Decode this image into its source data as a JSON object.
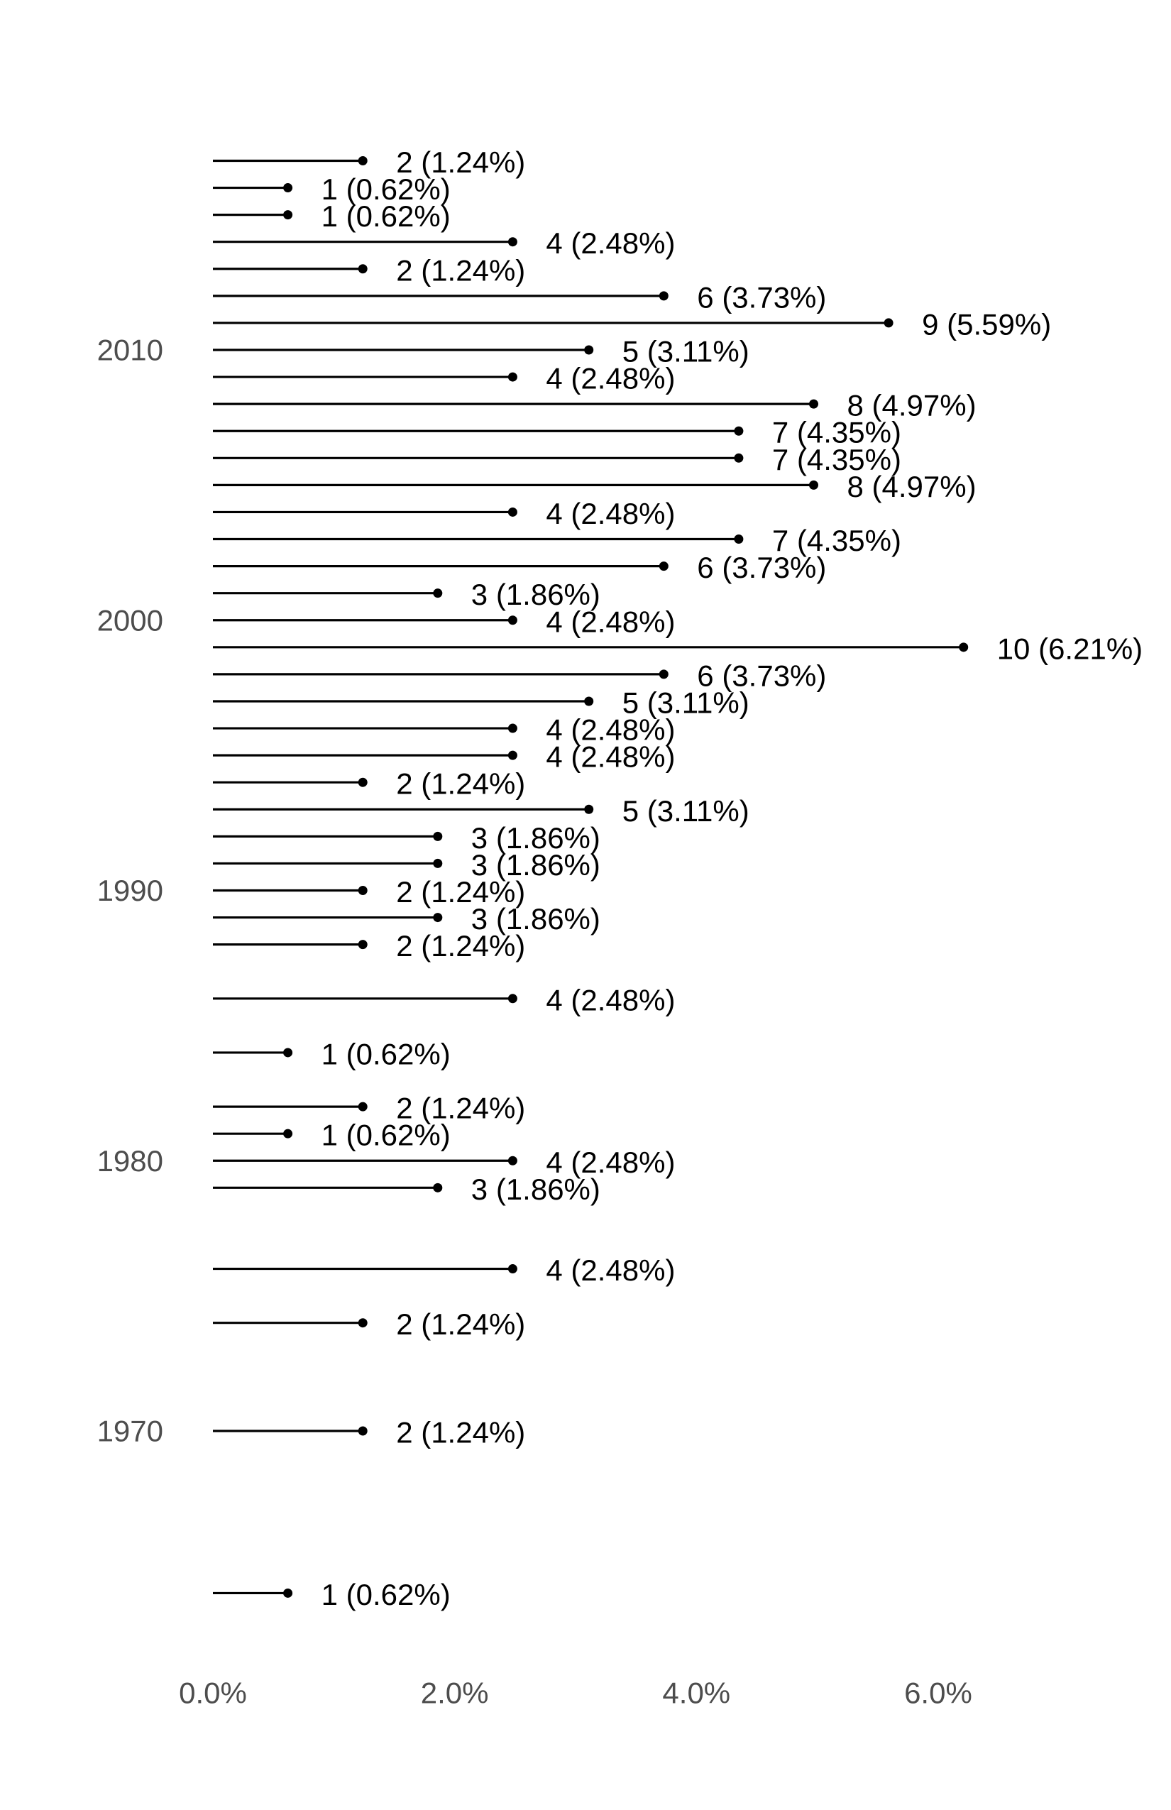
{
  "chart_data": {
    "type": "lollipop",
    "orientation": "horizontal",
    "title": "",
    "xlabel": "",
    "ylabel": "",
    "xlim": [
      0,
      0.0775
    ],
    "ylim": [
      1966,
      2016.5
    ],
    "x_ticks": [
      0,
      0.02,
      0.04,
      0.06
    ],
    "x_tick_labels": [
      "0.0%",
      "2.0%",
      "4.0%",
      "6.0%"
    ],
    "y_ticks": [
      1970,
      1980,
      1990,
      2000,
      2010
    ],
    "y_tick_labels": [
      "1970",
      "1980",
      "1990",
      "2000",
      "2010"
    ],
    "grid": false,
    "legend": "none",
    "points": [
      {
        "year": 1964,
        "count": 1,
        "share": 0.0062,
        "label": "1 (0.62%)"
      },
      {
        "year": 1970,
        "count": 2,
        "share": 0.0124,
        "label": "2 (1.24%)"
      },
      {
        "year": 1974,
        "count": 2,
        "share": 0.0124,
        "label": "2 (1.24%)"
      },
      {
        "year": 1976,
        "count": 4,
        "share": 0.0248,
        "label": "4 (2.48%)"
      },
      {
        "year": 1979,
        "count": 3,
        "share": 0.0186,
        "label": "3 (1.86%)"
      },
      {
        "year": 1980,
        "count": 4,
        "share": 0.0248,
        "label": "4 (2.48%)"
      },
      {
        "year": 1981,
        "count": 1,
        "share": 0.0062,
        "label": "1 (0.62%)"
      },
      {
        "year": 1982,
        "count": 2,
        "share": 0.0124,
        "label": "2 (1.24%)"
      },
      {
        "year": 1984,
        "count": 1,
        "share": 0.0062,
        "label": "1 (0.62%)"
      },
      {
        "year": 1986,
        "count": 4,
        "share": 0.0248,
        "label": "4 (2.48%)"
      },
      {
        "year": 1988,
        "count": 2,
        "share": 0.0124,
        "label": "2 (1.24%)"
      },
      {
        "year": 1989,
        "count": 3,
        "share": 0.0186,
        "label": "3 (1.86%)"
      },
      {
        "year": 1990,
        "count": 2,
        "share": 0.0124,
        "label": "2 (1.24%)"
      },
      {
        "year": 1991,
        "count": 3,
        "share": 0.0186,
        "label": "3 (1.86%)"
      },
      {
        "year": 1992,
        "count": 3,
        "share": 0.0186,
        "label": "3 (1.86%)"
      },
      {
        "year": 1993,
        "count": 5,
        "share": 0.0311,
        "label": "5 (3.11%)"
      },
      {
        "year": 1994,
        "count": 2,
        "share": 0.0124,
        "label": "2 (1.24%)"
      },
      {
        "year": 1995,
        "count": 4,
        "share": 0.0248,
        "label": "4 (2.48%)"
      },
      {
        "year": 1996,
        "count": 4,
        "share": 0.0248,
        "label": "4 (2.48%)"
      },
      {
        "year": 1997,
        "count": 5,
        "share": 0.0311,
        "label": "5 (3.11%)"
      },
      {
        "year": 1998,
        "count": 6,
        "share": 0.0373,
        "label": "6 (3.73%)"
      },
      {
        "year": 1999,
        "count": 10,
        "share": 0.0621,
        "label": "10 (6.21%)"
      },
      {
        "year": 2000,
        "count": 4,
        "share": 0.0248,
        "label": "4 (2.48%)"
      },
      {
        "year": 2001,
        "count": 3,
        "share": 0.0186,
        "label": "3 (1.86%)"
      },
      {
        "year": 2002,
        "count": 6,
        "share": 0.0373,
        "label": "6 (3.73%)"
      },
      {
        "year": 2003,
        "count": 7,
        "share": 0.0435,
        "label": "7 (4.35%)"
      },
      {
        "year": 2004,
        "count": 4,
        "share": 0.0248,
        "label": "4 (2.48%)"
      },
      {
        "year": 2005,
        "count": 8,
        "share": 0.0497,
        "label": "8 (4.97%)"
      },
      {
        "year": 2006,
        "count": 7,
        "share": 0.0435,
        "label": "7 (4.35%)"
      },
      {
        "year": 2007,
        "count": 7,
        "share": 0.0435,
        "label": "7 (4.35%)"
      },
      {
        "year": 2008,
        "count": 8,
        "share": 0.0497,
        "label": "8 (4.97%)"
      },
      {
        "year": 2009,
        "count": 4,
        "share": 0.0248,
        "label": "4 (2.48%)"
      },
      {
        "year": 2010,
        "count": 5,
        "share": 0.0311,
        "label": "5 (3.11%)"
      },
      {
        "year": 2011,
        "count": 9,
        "share": 0.0559,
        "label": "9 (5.59%)"
      },
      {
        "year": 2012,
        "count": 6,
        "share": 0.0373,
        "label": "6 (3.73%)"
      },
      {
        "year": 2013,
        "count": 2,
        "share": 0.0124,
        "label": "2 (1.24%)"
      },
      {
        "year": 2014,
        "count": 4,
        "share": 0.0248,
        "label": "4 (2.48%)"
      },
      {
        "year": 2015,
        "count": 1,
        "share": 0.0062,
        "label": "1 (0.62%)"
      },
      {
        "year": 2016,
        "count": 1,
        "share": 0.0062,
        "label": "1 (0.62%)"
      },
      {
        "year": 2017,
        "count": 2,
        "share": 0.0124,
        "label": "2 (1.24%)"
      }
    ],
    "colors": {
      "stem": "#000000",
      "dot": "#000000",
      "tick_text": "#4d4d4d",
      "label_text": "#000000"
    }
  }
}
